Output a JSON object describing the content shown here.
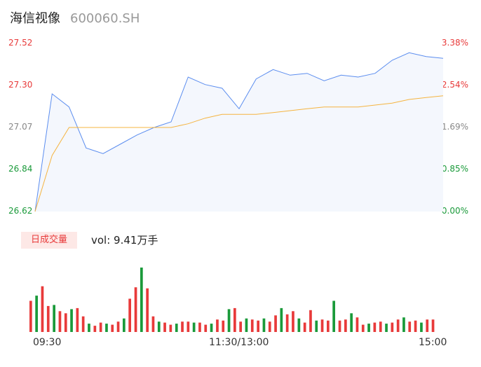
{
  "header": {
    "name": "海信视像",
    "code": "600060.SH"
  },
  "colors": {
    "up": "#e83a3a",
    "down": "#1a9a3a",
    "price_line": "#5b8def",
    "avg_line": "#f5b440",
    "area_fill": "#f4f7fd"
  },
  "price_axis": {
    "labels": [
      "27.52",
      "27.30",
      "27.07",
      "26.84",
      "26.62"
    ],
    "min": 26.62,
    "max": 27.52
  },
  "pct_axis": {
    "labels": [
      "3.38%",
      "2.54%",
      "1.69%",
      "0.85%",
      "0.00%"
    ]
  },
  "volume": {
    "tag": "日成交量",
    "text": "vol: 9.41万手"
  },
  "time_axis": {
    "labels": [
      "09:30",
      "11:30/13:00",
      "15:00"
    ]
  },
  "chart_data": {
    "type": "line",
    "x": [
      "09:30",
      "09:40",
      "09:50",
      "10:00",
      "10:10",
      "10:20",
      "10:30",
      "10:40",
      "10:50",
      "11:00",
      "11:10",
      "11:20",
      "11:30/13:00",
      "13:10",
      "13:20",
      "13:30",
      "13:40",
      "13:50",
      "14:00",
      "14:10",
      "14:20",
      "14:30",
      "14:40",
      "14:50",
      "15:00"
    ],
    "series": [
      {
        "values": [
          26.62,
          27.25,
          27.18,
          26.96,
          26.93,
          26.98,
          27.03,
          27.07,
          27.1,
          27.34,
          27.3,
          27.28,
          27.17,
          27.33,
          27.38,
          27.35,
          27.36,
          27.32,
          27.35,
          27.34,
          27.36,
          27.43,
          27.47,
          27.45,
          27.44
        ]
      },
      {
        "values": [
          26.62,
          26.92,
          27.07,
          27.07,
          27.07,
          27.07,
          27.07,
          27.07,
          27.07,
          27.09,
          27.12,
          27.14,
          27.14,
          27.14,
          27.15,
          27.16,
          27.17,
          27.18,
          27.18,
          27.18,
          27.19,
          27.2,
          27.22,
          27.23,
          27.24
        ]
      }
    ],
    "volume_values": [
      30,
      35,
      44,
      25,
      26,
      20,
      18,
      22,
      23,
      15,
      8,
      6,
      9,
      8,
      7,
      10,
      13,
      32,
      43,
      62,
      42,
      15,
      10,
      9,
      7,
      8,
      10,
      10,
      9,
      9,
      7,
      8,
      12,
      11,
      22,
      23,
      10,
      13,
      12,
      11,
      13,
      10,
      16,
      23,
      17,
      20,
      13,
      9,
      21,
      11,
      12,
      11,
      30,
      11,
      12,
      18,
      14,
      7,
      8,
      9,
      10,
      8,
      9,
      12,
      14,
      10,
      11,
      9,
      12,
      12
    ],
    "ylim": [
      26.62,
      27.52
    ]
  }
}
